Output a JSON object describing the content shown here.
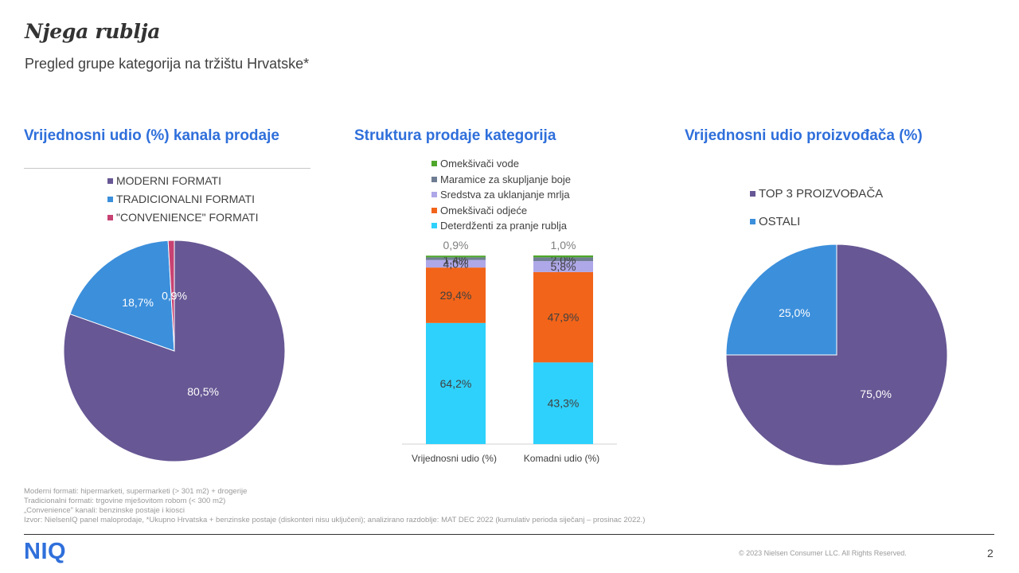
{
  "header": {
    "title": "Njega rublja",
    "subtitle": "Pregled grupe kategorija na tržištu Hrvatske*"
  },
  "chart_data": [
    {
      "type": "pie",
      "title": "Vrijednosni udio (%) kanala prodaje",
      "labels": [
        "MODERNI FORMATI",
        "TRADICIONALNI FORMATI",
        "\"CONVENIENCE\" FORMATI"
      ],
      "values": [
        80.5,
        18.7,
        0.9
      ],
      "value_labels": [
        "80,5%",
        "18,7%",
        "0,9%"
      ],
      "colors": [
        "#675794",
        "#3c8fdb",
        "#c74272"
      ],
      "legend_position": "top"
    },
    {
      "type": "bar",
      "stacked": true,
      "title": "Struktura prodaje kategorija",
      "categories": [
        "Vrijednosni udio (%)",
        "Komadni udio (%)"
      ],
      "series": [
        {
          "name": "Deterdženti za pranje rublja",
          "values": [
            64.2,
            43.3
          ],
          "labels": [
            "64,2%",
            "43,3%"
          ],
          "color": "#2ed1fb"
        },
        {
          "name": "Omekšivači odjeće",
          "values": [
            29.4,
            47.9
          ],
          "labels": [
            "29,4%",
            "47,9%"
          ],
          "color": "#f26419"
        },
        {
          "name": "Sredstva za uklanjanje mrlja",
          "values": [
            4.0,
            5.8
          ],
          "labels": [
            "4,0%",
            "5,8%"
          ],
          "color": "#aea7e8"
        },
        {
          "name": "Maramice za skupljanje boje",
          "values": [
            1.4,
            2.0
          ],
          "labels": [
            "1,4%",
            "2,0%"
          ],
          "color": "#6f7d93"
        },
        {
          "name": "Omekšivači vode",
          "values": [
            0.9,
            1.0
          ],
          "labels": [
            "0,9%",
            "1,0%"
          ],
          "color": "#4ea72a"
        }
      ],
      "ylim": [
        0,
        100
      ],
      "legend_position": "top"
    },
    {
      "type": "pie",
      "title": "Vrijednosni udio proizvođača (%)",
      "labels": [
        "TOP 3 PROIZVOĐAČA",
        "OSTALI"
      ],
      "values": [
        75.0,
        25.0
      ],
      "value_labels": [
        "75,0%",
        "25,0%"
      ],
      "colors": [
        "#675794",
        "#3c8fdb"
      ],
      "legend_position": "top"
    }
  ],
  "footnotes": [
    "Moderni formati: hipermarketi, supermarketi (> 301 m2) + drogerije",
    "Tradicionalni formati: trgovine mješovitom robom (< 300 m2)",
    "„Convenience\" kanali: benzinske postaje i kiosci",
    "Izvor: NielsenIQ panel maloprodaje, *Ukupno Hrvatska + benzinske postaje (diskonteri nisu uključeni); analizirano razdoblje: MAT DEC 2022 (kumulativ perioda siječanj – prosinac 2022.)"
  ],
  "footer": {
    "logo": "NIQ",
    "copyright": "© 2023 Nielsen Consumer LLC. All Rights Reserved.",
    "page_number": "2"
  }
}
